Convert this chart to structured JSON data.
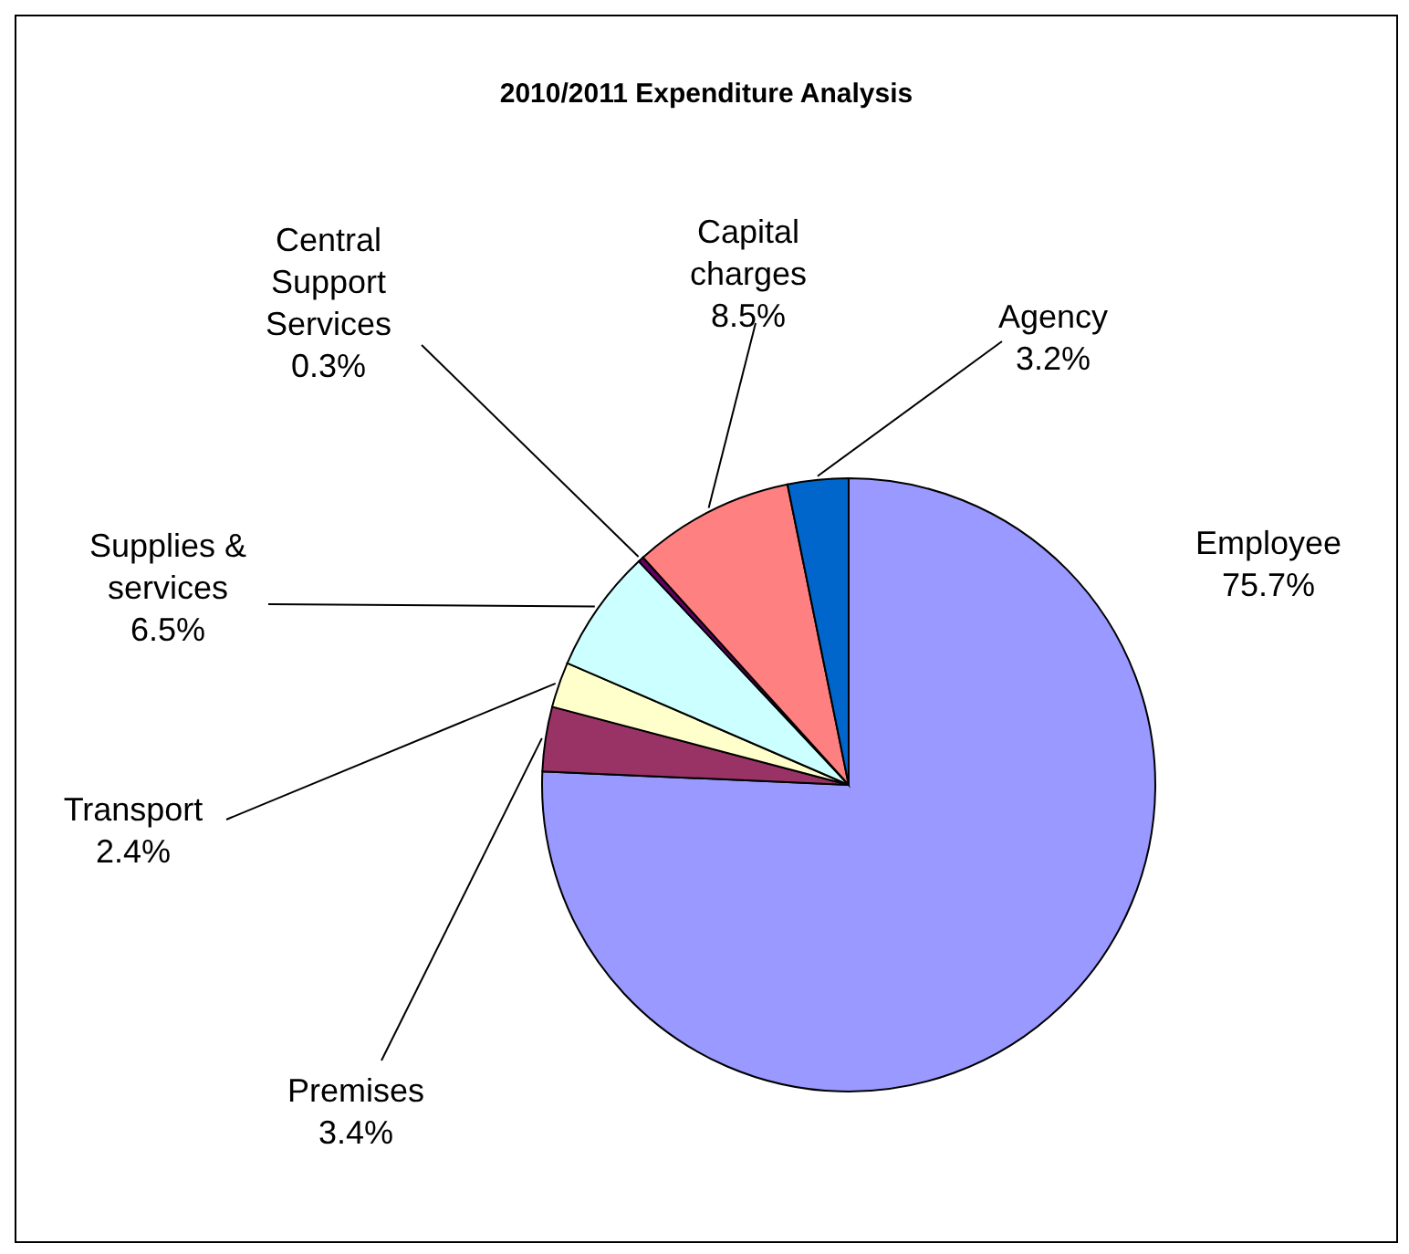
{
  "chart_data": {
    "type": "pie",
    "title": "2010/2011 Expenditure Analysis",
    "categories": [
      "Employee",
      "Premises",
      "Transport",
      "Supplies & services",
      "Central Support Services",
      "Capital charges",
      "Agency"
    ],
    "values": [
      75.7,
      3.4,
      2.4,
      6.5,
      0.3,
      8.5,
      3.2
    ],
    "value_labels": [
      "75.7%",
      "3.4%",
      "2.4%",
      "6.5%",
      "0.3%",
      "8.5%",
      "3.2%"
    ],
    "colors": [
      "#9999ff",
      "#993366",
      "#ffffcc",
      "#ccffff",
      "#660066",
      "#ff8080",
      "#0066cc"
    ]
  }
}
